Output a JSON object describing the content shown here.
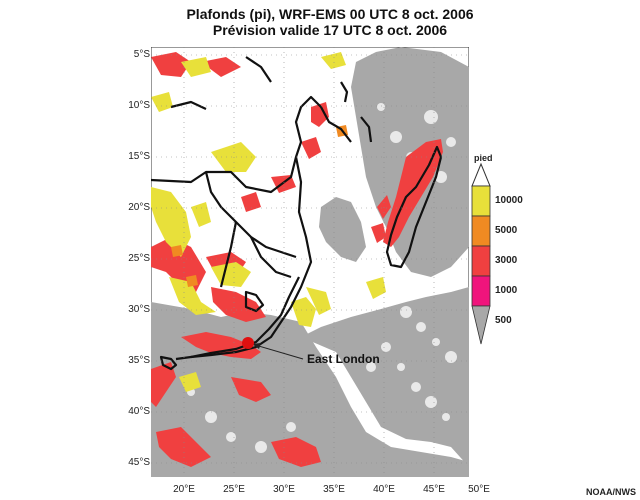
{
  "title_line1": "Plafonds (pi), WRF-EMS 00 UTC 8 oct. 2006",
  "title_line2": "Prévision valide 17 UTC 8 oct. 2006",
  "y_ticks": [
    "5°S",
    "10°S",
    "15°S",
    "20°S",
    "25°S",
    "30°S",
    "35°S",
    "40°S",
    "45°S"
  ],
  "x_ticks": [
    "20°E",
    "25°E",
    "30°E",
    "35°E",
    "40°E",
    "45°E",
    "50°E"
  ],
  "legend": {
    "title": "pied",
    "levels": [
      {
        "label": "10000",
        "color": "#e8e03a"
      },
      {
        "label": "5000",
        "color": "#f08a22"
      },
      {
        "label": "3000",
        "color": "#f04040"
      },
      {
        "label": "1000",
        "color": "#f0147c"
      },
      {
        "label": "500",
        "color": "#a8a8a8"
      }
    ]
  },
  "annotation": {
    "label": "East London"
  },
  "credit": "NOAA/NWS",
  "colors": {
    "ceiling_grey": "#a8a8a8",
    "ceiling_red": "#f04040",
    "ceiling_yellow": "#e8e03a",
    "ceiling_orange": "#f08a22"
  }
}
